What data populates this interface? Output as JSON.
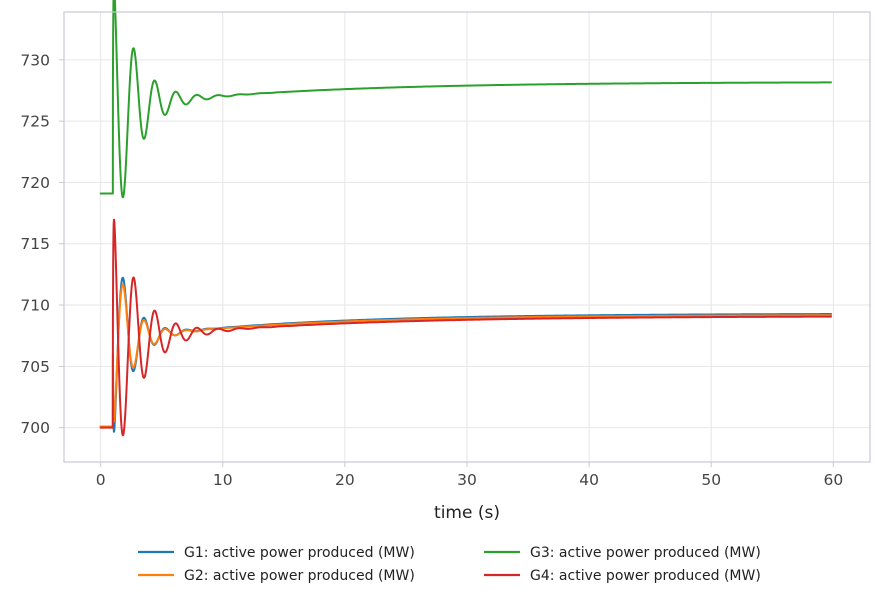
{
  "chart_data": {
    "type": "line",
    "title": "",
    "xlabel": "time (s)",
    "ylabel": "",
    "xlim": [
      -3,
      63
    ],
    "ylim": [
      697.2,
      733.9
    ],
    "xticks": [
      0,
      10,
      20,
      30,
      40,
      50,
      60
    ],
    "yticks": [
      700,
      705,
      710,
      715,
      720,
      725,
      730
    ],
    "grid": true,
    "legend_position": "bottom-center",
    "series": [
      {
        "name": "G1: active power produced (MW)",
        "color": "#1f77b4",
        "base": 700.1,
        "final": 709.3,
        "amplitude": -9.0,
        "decay": 0.7,
        "omega": 3.64,
        "recover_tau": 14,
        "points": [
          [
            0,
            700.1
          ],
          [
            1.0,
            700.1
          ],
          [
            1.1,
            710.0
          ],
          [
            1.6,
            710.3
          ],
          [
            2.5,
            700.1
          ],
          [
            3.4,
            707.5
          ],
          [
            4.2,
            703.6
          ],
          [
            5.0,
            707.6
          ],
          [
            6.0,
            705.5
          ],
          [
            7.0,
            707.3
          ],
          [
            8.0,
            706.2
          ],
          [
            10.0,
            707.1
          ],
          [
            12.0,
            707.2
          ],
          [
            15.0,
            707.5
          ],
          [
            20.0,
            708.0
          ],
          [
            30.0,
            708.6
          ],
          [
            40.0,
            709.0
          ],
          [
            50.0,
            709.2
          ],
          [
            60.0,
            709.3
          ]
        ]
      },
      {
        "name": "G2: active power produced (MW)",
        "color": "#ff7f0e",
        "base": 700.1,
        "final": 709.2,
        "amplitude": -8.0,
        "decay": 0.7,
        "omega": 3.64,
        "recover_tau": 14,
        "points": [
          [
            0,
            700.1
          ],
          [
            1.0,
            700.1
          ],
          [
            1.05,
            699.0
          ],
          [
            1.2,
            704.0
          ],
          [
            1.8,
            709.2
          ],
          [
            2.6,
            701.0
          ],
          [
            3.5,
            706.6
          ],
          [
            4.3,
            704.2
          ],
          [
            5.1,
            707.0
          ],
          [
            6.1,
            705.8
          ],
          [
            7.0,
            707.0
          ],
          [
            8.0,
            706.4
          ],
          [
            10.0,
            707.0
          ],
          [
            12.0,
            707.1
          ],
          [
            15.0,
            707.5
          ],
          [
            20.0,
            708.0
          ],
          [
            30.0,
            708.5
          ],
          [
            40.0,
            708.9
          ],
          [
            50.0,
            709.1
          ],
          [
            60.0,
            709.2
          ]
        ]
      },
      {
        "name": "G3: active power produced (MW)",
        "color": "#2ca02c",
        "base": 719.1,
        "final": 728.2,
        "amplitude": 11.8,
        "decay": 0.55,
        "omega": 3.64,
        "recover_tau": 15,
        "points": [
          [
            0,
            719.1
          ],
          [
            1.0,
            719.1
          ],
          [
            1.1,
            728.0
          ],
          [
            1.2,
            732.3
          ],
          [
            1.8,
            717.0
          ],
          [
            2.6,
            727.8
          ],
          [
            3.4,
            720.5
          ],
          [
            4.2,
            727.0
          ],
          [
            5.0,
            723.5
          ],
          [
            5.8,
            726.7
          ],
          [
            6.7,
            724.9
          ],
          [
            7.5,
            726.1
          ],
          [
            8.3,
            725.3
          ],
          [
            9.2,
            726.1
          ],
          [
            10.0,
            725.7
          ],
          [
            11.0,
            726.1
          ],
          [
            12.0,
            726.1
          ],
          [
            15.0,
            726.5
          ],
          [
            20.0,
            726.8
          ],
          [
            30.0,
            727.4
          ],
          [
            40.0,
            727.8
          ],
          [
            50.0,
            728.0
          ],
          [
            60.0,
            728.2
          ]
        ]
      },
      {
        "name": "G4: active power produced (MW)",
        "color": "#d62728",
        "base": 700.0,
        "final": 709.1,
        "amplitude": 11.8,
        "decay": 0.5,
        "omega": 3.64,
        "recover_tau": 15,
        "points": [
          [
            0,
            700.0
          ],
          [
            1.0,
            700.0
          ],
          [
            1.1,
            719.5
          ],
          [
            1.7,
            700.9
          ],
          [
            2.5,
            708.9
          ],
          [
            3.4,
            701.9
          ],
          [
            4.2,
            707.9
          ],
          [
            5.0,
            704.4
          ],
          [
            5.8,
            707.6
          ],
          [
            6.7,
            705.6
          ],
          [
            7.5,
            707.0
          ],
          [
            8.4,
            706.4
          ],
          [
            10.0,
            706.9
          ],
          [
            12.0,
            707.1
          ],
          [
            15.0,
            707.4
          ],
          [
            20.0,
            707.9
          ],
          [
            30.0,
            708.4
          ],
          [
            40.0,
            708.8
          ],
          [
            50.0,
            709.0
          ],
          [
            60.0,
            709.1
          ]
        ]
      }
    ]
  }
}
